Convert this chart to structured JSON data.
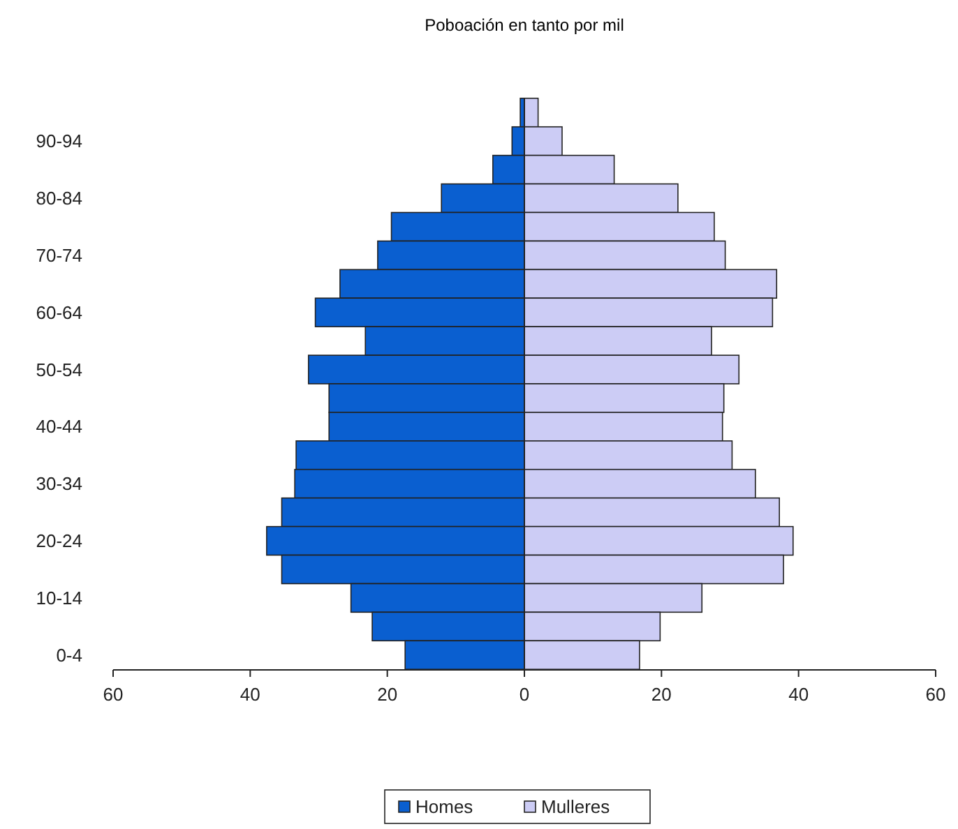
{
  "chart_data": {
    "type": "bar",
    "orientation": "horizontal",
    "title": "Poboación en tanto por mil",
    "categories": [
      null,
      "90-94",
      null,
      "80-84",
      null,
      "70-74",
      null,
      "60-64",
      null,
      "50-54",
      null,
      "40-44",
      null,
      "30-34",
      null,
      "20-24",
      null,
      "10-14",
      null,
      "0-4"
    ],
    "series": [
      {
        "name": "Homes",
        "color": "#0a5fd0",
        "values": [
          -0.6,
          -1.8,
          -4.6,
          -12.1,
          -19.4,
          -21.4,
          -26.9,
          -30.5,
          -23.2,
          -31.5,
          -28.5,
          -28.5,
          -33.3,
          -33.5,
          -35.4,
          -37.6,
          -35.4,
          -25.3,
          -22.2,
          -17.4
        ]
      },
      {
        "name": "Mulleres",
        "color": "#ccccf5",
        "values": [
          2.0,
          5.5,
          13.1,
          22.4,
          27.7,
          29.3,
          36.8,
          36.2,
          27.3,
          31.3,
          29.1,
          28.9,
          30.3,
          33.7,
          37.2,
          39.2,
          37.8,
          25.9,
          19.8,
          16.8
        ]
      }
    ],
    "xlim": [
      -60,
      60
    ],
    "xticks": [
      {
        "value": -60,
        "label": "60"
      },
      {
        "value": -40,
        "label": "40"
      },
      {
        "value": -20,
        "label": "20"
      },
      0,
      20,
      40,
      60
    ],
    "stacked": true,
    "legend": "bottom"
  }
}
